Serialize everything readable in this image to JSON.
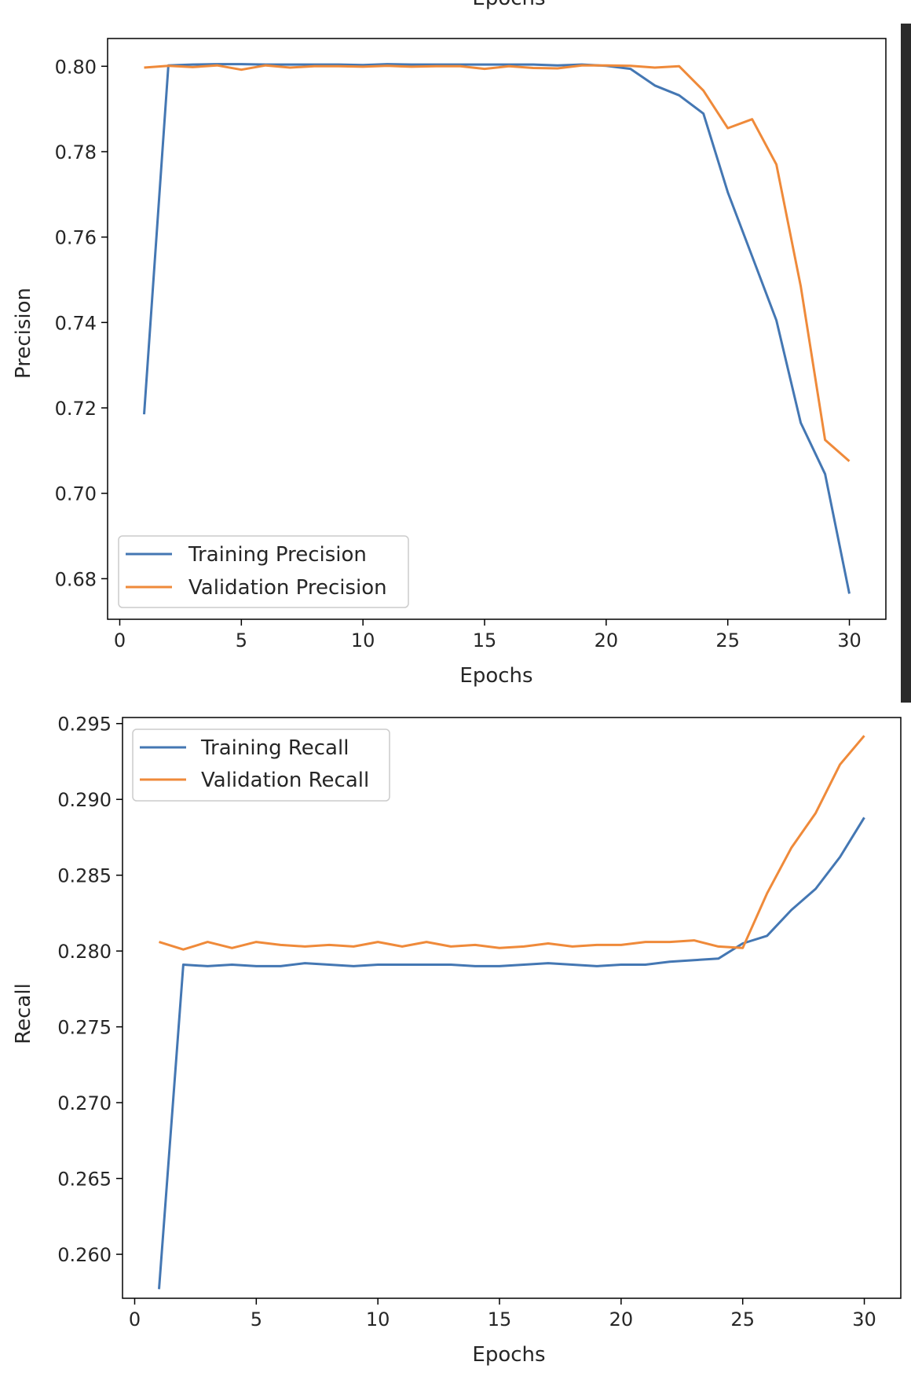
{
  "top_clipped_label": "Epochs",
  "colors": {
    "training": "#4477b3",
    "validation": "#ef8a3a",
    "axes": "#000000",
    "background": "#ffffff"
  },
  "chart_data": [
    {
      "type": "line",
      "title": "",
      "xlabel": "Epochs",
      "ylabel": "Precision",
      "xlim": [
        -0.5,
        31.5
      ],
      "ylim": [
        0.6705,
        0.8065
      ],
      "xticks": [
        0,
        5,
        10,
        15,
        20,
        25,
        30
      ],
      "yticks": [
        0.68,
        0.7,
        0.72,
        0.74,
        0.76,
        0.78,
        0.8
      ],
      "ytick_labels": [
        "0.68",
        "0.70",
        "0.72",
        "0.74",
        "0.76",
        "0.78",
        "0.80"
      ],
      "grid": false,
      "legend_position": "lower-left",
      "x": [
        1,
        2,
        3,
        4,
        5,
        6,
        7,
        8,
        9,
        10,
        11,
        12,
        13,
        14,
        15,
        16,
        17,
        18,
        19,
        20,
        21,
        22,
        23,
        24,
        25,
        26,
        27,
        28,
        29,
        30
      ],
      "series": [
        {
          "name": "Training Precision",
          "color": "#4477b3",
          "values": [
            0.7185,
            0.8002,
            0.8004,
            0.8005,
            0.8005,
            0.8004,
            0.8004,
            0.8004,
            0.8004,
            0.8003,
            0.8005,
            0.8004,
            0.8004,
            0.8004,
            0.8004,
            0.8004,
            0.8004,
            0.8002,
            0.8004,
            0.8001,
            0.7994,
            0.7955,
            0.7932,
            0.7889,
            0.7705,
            0.7555,
            0.7405,
            0.7165,
            0.7045,
            0.6765
          ]
        },
        {
          "name": "Validation Precision",
          "color": "#ef8a3a",
          "values": [
            0.7997,
            0.8001,
            0.7998,
            0.8002,
            0.7992,
            0.8002,
            0.7997,
            0.8,
            0.8,
            0.7999,
            0.8001,
            0.7999,
            0.8,
            0.8,
            0.7994,
            0.8,
            0.7996,
            0.7995,
            0.8002,
            0.8002,
            0.8001,
            0.7997,
            0.8,
            0.7943,
            0.7855,
            0.7876,
            0.777,
            0.7485,
            0.7125,
            0.7075
          ]
        }
      ]
    },
    {
      "type": "line",
      "title": "",
      "xlabel": "Epochs",
      "ylabel": "Recall",
      "xlim": [
        -0.5,
        31.5
      ],
      "ylim": [
        0.2571,
        0.2954
      ],
      "xticks": [
        0,
        5,
        10,
        15,
        20,
        25,
        30
      ],
      "yticks": [
        0.26,
        0.265,
        0.27,
        0.275,
        0.28,
        0.285,
        0.29,
        0.295
      ],
      "ytick_labels": [
        "0.260",
        "0.265",
        "0.270",
        "0.275",
        "0.280",
        "0.285",
        "0.290",
        "0.295"
      ],
      "grid": false,
      "legend_position": "upper-left",
      "x": [
        1,
        2,
        3,
        4,
        5,
        6,
        7,
        8,
        9,
        10,
        11,
        12,
        13,
        14,
        15,
        16,
        17,
        18,
        19,
        20,
        21,
        22,
        23,
        24,
        25,
        26,
        27,
        28,
        29,
        30
      ],
      "series": [
        {
          "name": "Training Recall",
          "color": "#4477b3",
          "values": [
            0.2577,
            0.2791,
            0.279,
            0.2791,
            0.279,
            0.279,
            0.2792,
            0.2791,
            0.279,
            0.2791,
            0.2791,
            0.2791,
            0.2791,
            0.279,
            0.279,
            0.2791,
            0.2792,
            0.2791,
            0.279,
            0.2791,
            0.2791,
            0.2793,
            0.2794,
            0.2795,
            0.2805,
            0.281,
            0.2827,
            0.2841,
            0.2862,
            0.2888
          ]
        },
        {
          "name": "Validation Recall",
          "color": "#ef8a3a",
          "values": [
            0.2806,
            0.2801,
            0.2806,
            0.2802,
            0.2806,
            0.2804,
            0.2803,
            0.2804,
            0.2803,
            0.2806,
            0.2803,
            0.2806,
            0.2803,
            0.2804,
            0.2802,
            0.2803,
            0.2805,
            0.2803,
            0.2804,
            0.2804,
            0.2806,
            0.2806,
            0.2807,
            0.2803,
            0.2802,
            0.2838,
            0.2868,
            0.2891,
            0.2923,
            0.2942
          ]
        }
      ]
    }
  ]
}
